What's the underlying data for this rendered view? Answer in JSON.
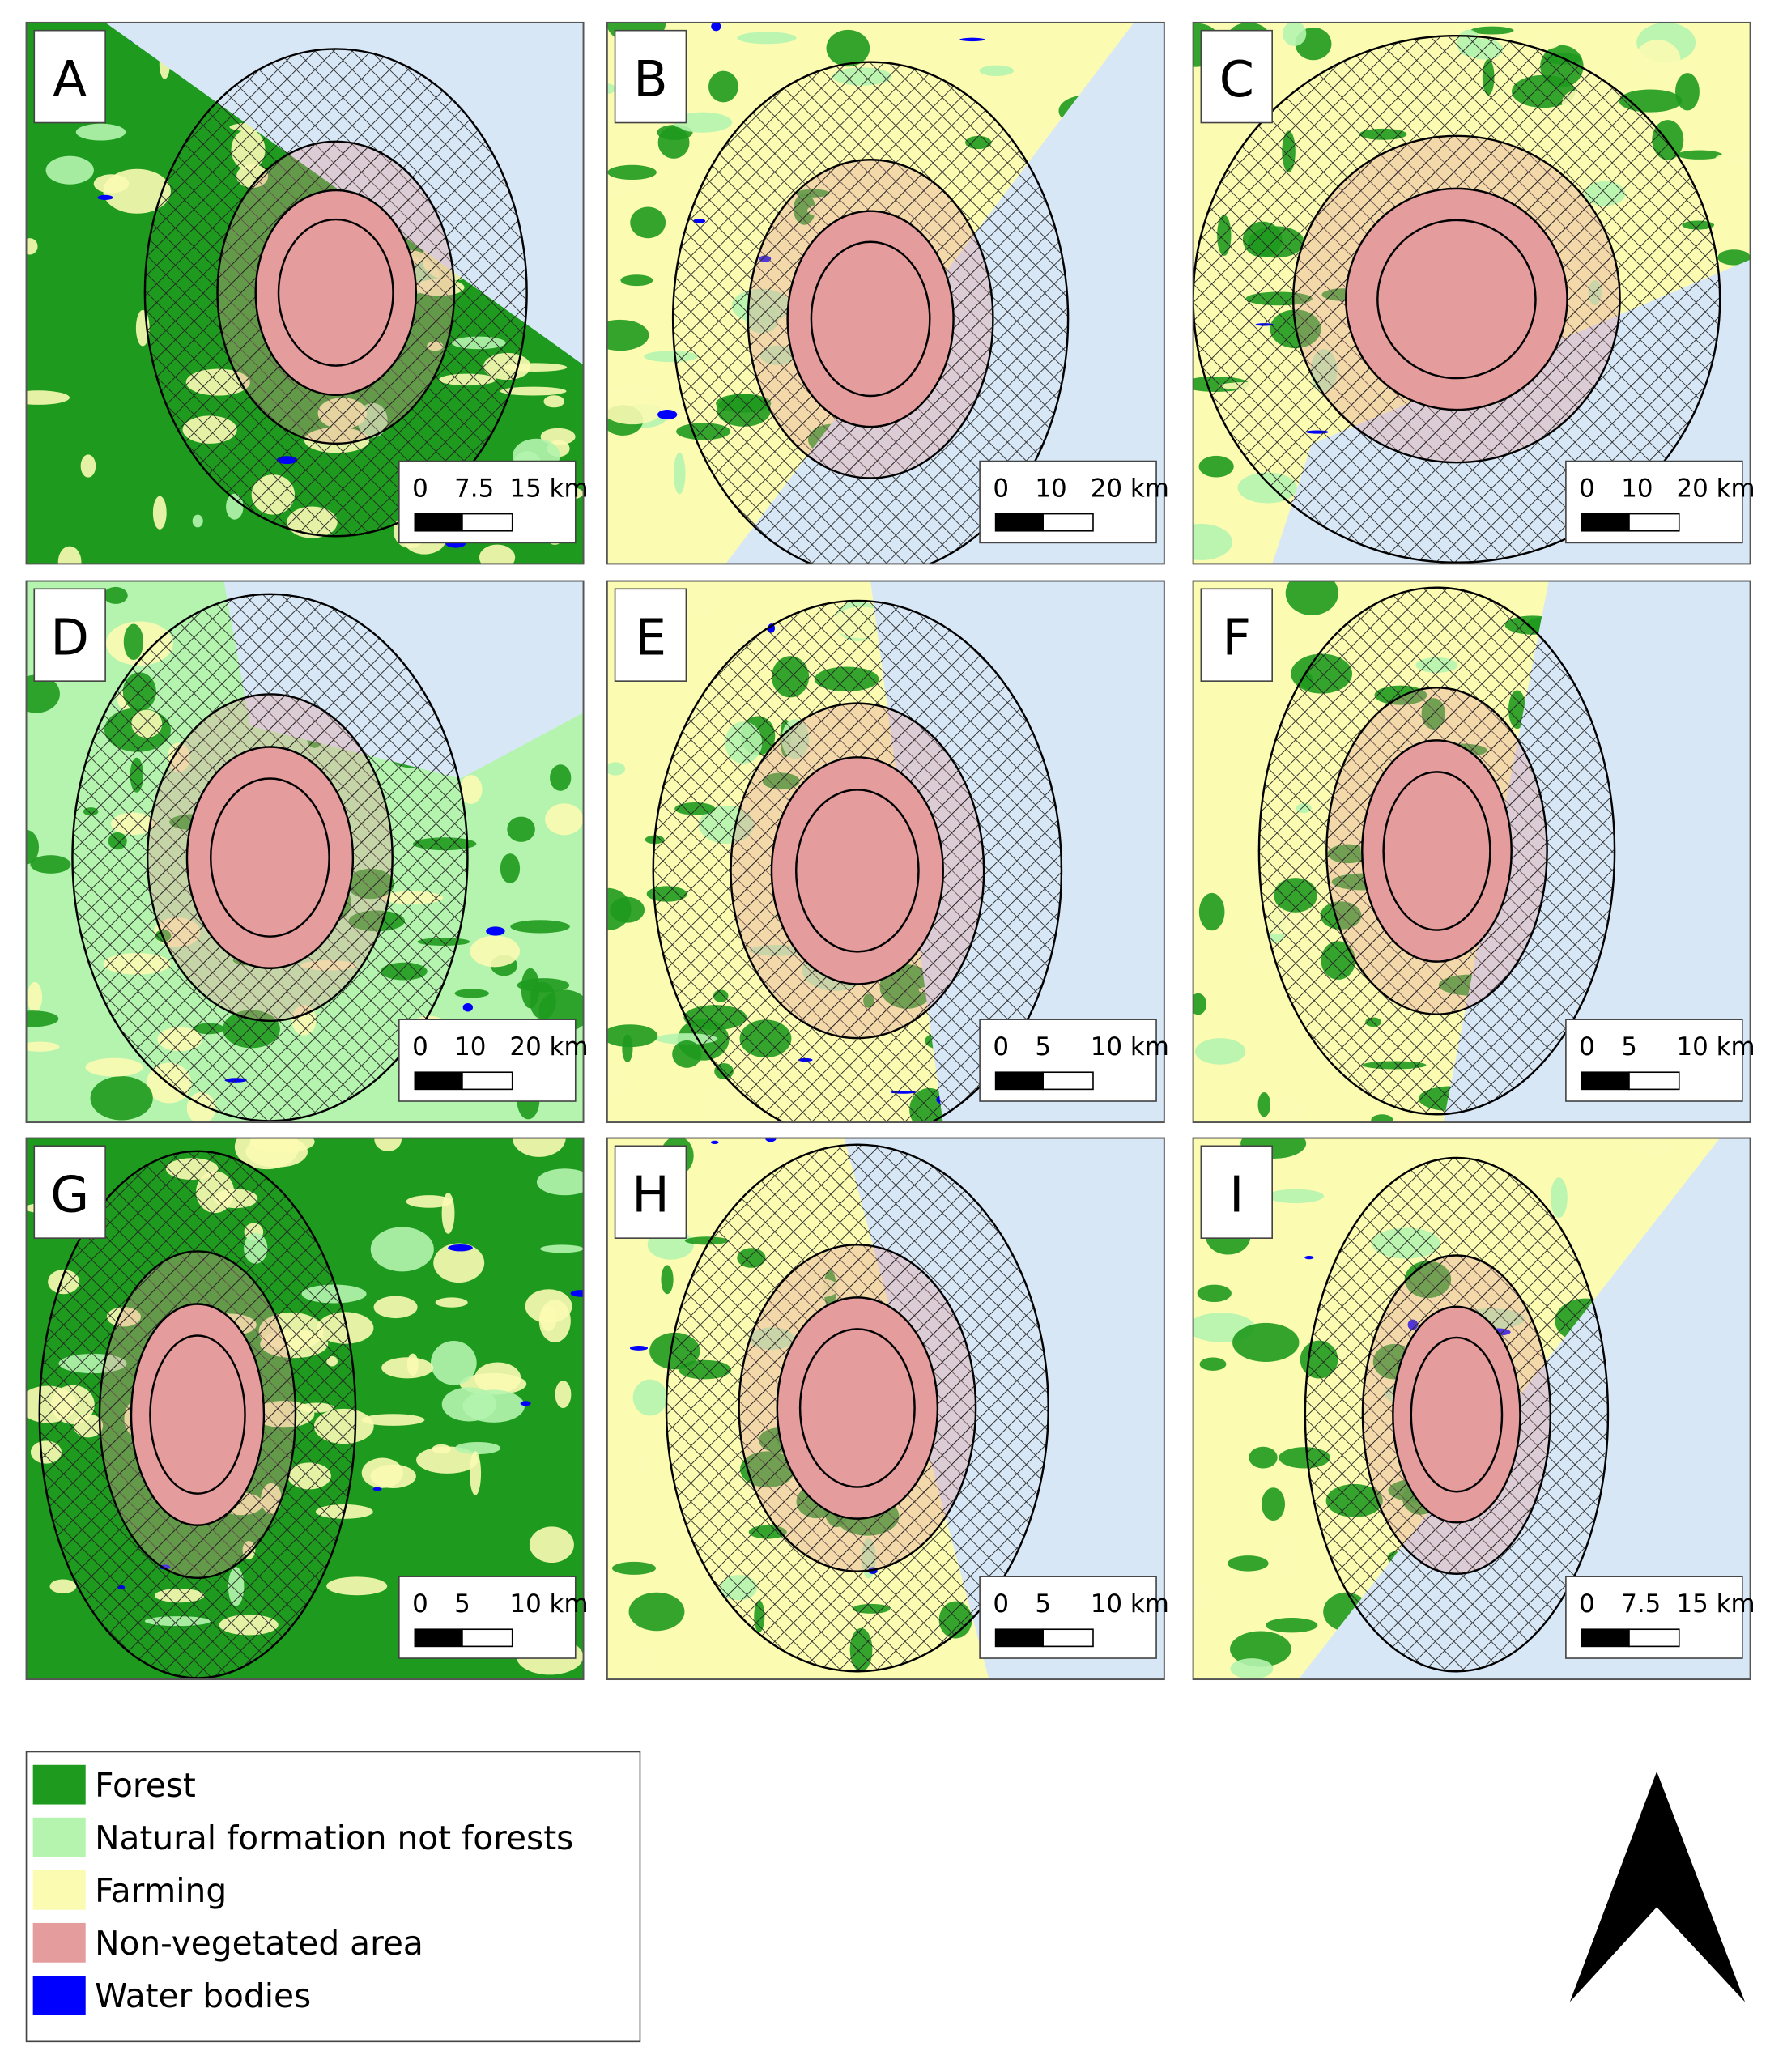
{
  "panels": [
    {
      "label": "A",
      "scale": [
        "0",
        "7.5",
        "15 km"
      ]
    },
    {
      "label": "B",
      "scale": [
        "0",
        "10",
        "20 km"
      ]
    },
    {
      "label": "C",
      "scale": [
        "0",
        "10",
        "20 km"
      ]
    },
    {
      "label": "D",
      "scale": [
        "0",
        "10",
        "20 km"
      ]
    },
    {
      "label": "E",
      "scale": [
        "0",
        "5",
        "10 km"
      ]
    },
    {
      "label": "F",
      "scale": [
        "0",
        "5",
        "10 km"
      ]
    },
    {
      "label": "G",
      "scale": [
        "0",
        "5",
        "10 km"
      ]
    },
    {
      "label": "H",
      "scale": [
        "0",
        "5",
        "10 km"
      ]
    },
    {
      "label": "I",
      "scale": [
        "0",
        "7.5",
        "15 km"
      ]
    }
  ],
  "legend": [
    {
      "label": "Forest",
      "color": "#1e9a1e"
    },
    {
      "label": "Natural formation not forests",
      "color": "#b4f4ae"
    },
    {
      "label": "Farming",
      "color": "#fbfbb2"
    },
    {
      "label": "Non-vegetated area",
      "color": "#e59c9c"
    },
    {
      "label": "Water bodies",
      "color": "#0000ff"
    }
  ]
}
